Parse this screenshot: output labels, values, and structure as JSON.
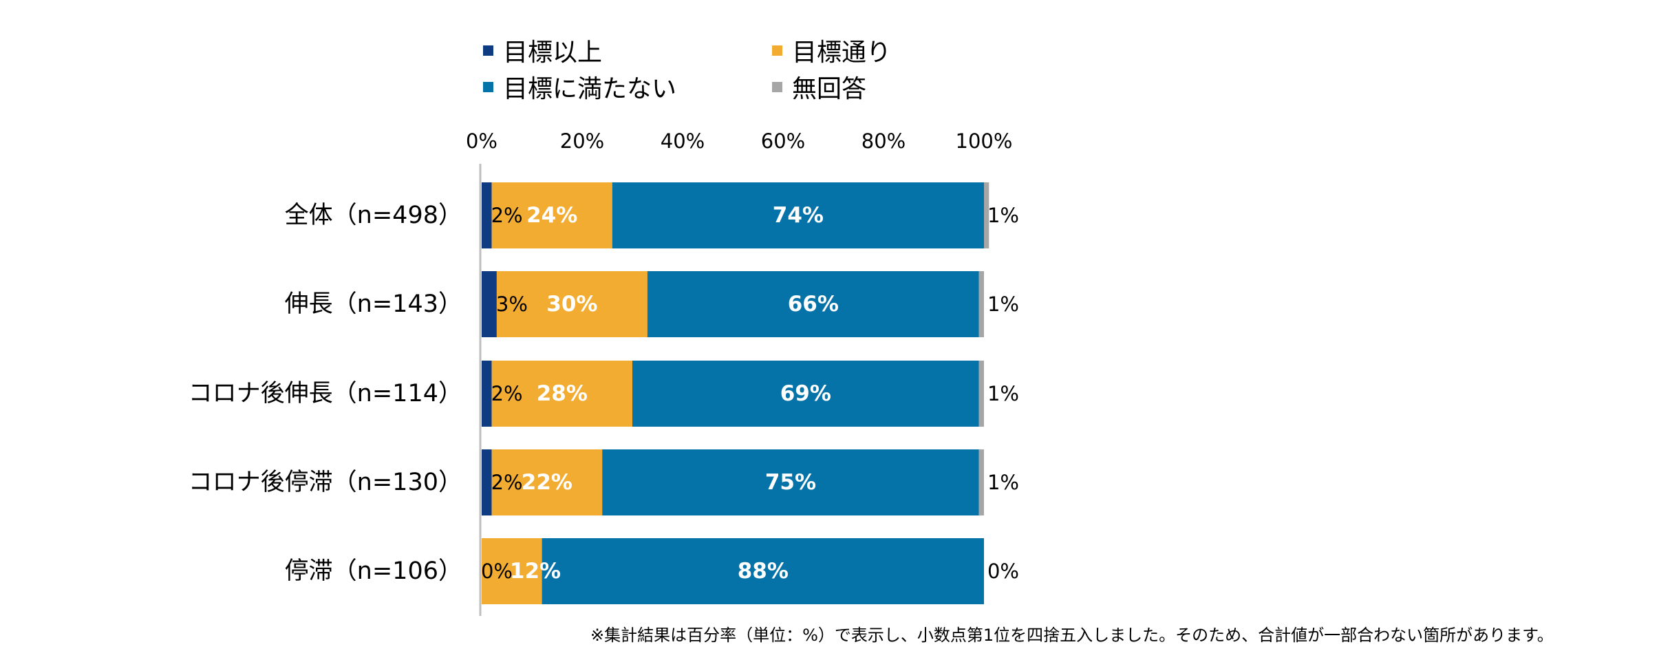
{
  "chart_data": {
    "type": "bar",
    "orientation": "horizontal",
    "stacked": true,
    "categories": [
      "全体（n=498）",
      "伸長（n=143）",
      "コロナ後伸長（n=114）",
      "コロナ後停滞（n=130）",
      "停滞（n=106）"
    ],
    "series": [
      {
        "name": "目標以上",
        "color": "#0f3b82",
        "values": [
          2,
          3,
          2,
          2,
          0
        ],
        "labels": [
          "2%",
          "3%",
          "2%",
          "2%",
          "0%"
        ]
      },
      {
        "name": "目標通り",
        "color": "#f2ac31",
        "values": [
          24,
          30,
          28,
          22,
          12
        ],
        "labels": [
          "24%",
          "30%",
          "28%",
          "22%",
          "12%"
        ]
      },
      {
        "name": "目標に満たない",
        "color": "#0572a8",
        "values": [
          74,
          66,
          69,
          75,
          88
        ],
        "labels": [
          "74%",
          "66%",
          "69%",
          "75%",
          "88%"
        ]
      },
      {
        "name": "無回答",
        "color": "#a6a6a6",
        "values": [
          1,
          1,
          1,
          1,
          0
        ],
        "labels": [
          "1%",
          "1%",
          "1%",
          "1%",
          "0%"
        ]
      }
    ],
    "x_ticks": [
      "0%",
      "20%",
      "40%",
      "60%",
      "80%",
      "100%"
    ],
    "xlim": [
      0,
      100
    ],
    "legend_position": "top",
    "grid": false,
    "footnote": "※集計結果は百分率（単位：%）で表示し、小数点第1位を四捨五入しました。そのため、合計値が一部合わない箇所があります。"
  }
}
